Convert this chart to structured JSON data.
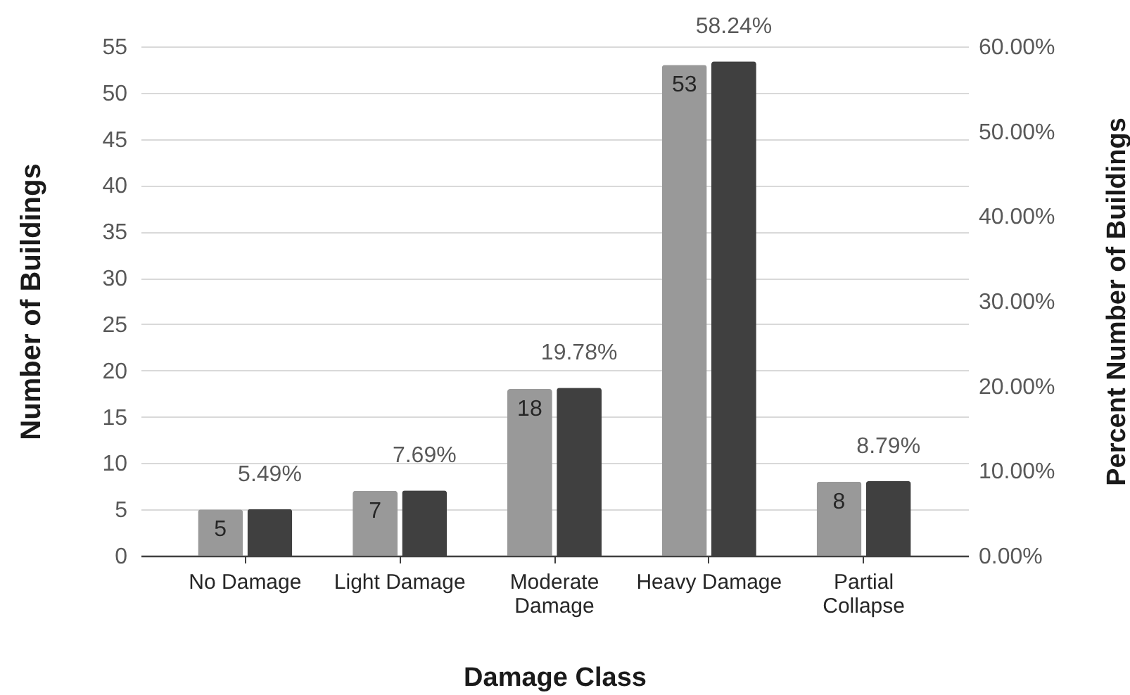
{
  "chart_data": {
    "type": "bar",
    "xlabel": "Damage Class",
    "ylabel": "Number of Buildings",
    "y2label": "Percent Number of Buildings",
    "categories": [
      "No Damage",
      "Light Damage",
      "Moderate Damage",
      "Heavy Damage",
      "Partial Collapse"
    ],
    "series": [
      {
        "color": "#999999",
        "values": [
          5,
          7,
          18,
          53,
          8
        ],
        "value_labels": [
          "5",
          "7",
          "18",
          "53",
          "8"
        ]
      },
      {
        "color": "#404040",
        "axis": "y2",
        "values": [
          5.49,
          7.69,
          19.78,
          58.24,
          8.79
        ],
        "value_labels": [
          "5.49%",
          "7.69%",
          "19.78%",
          "58.24%",
          "8.79%"
        ]
      }
    ],
    "ylim": [
      0,
      55
    ],
    "yticks": [
      0,
      5,
      10,
      15,
      20,
      25,
      30,
      35,
      40,
      45,
      50,
      55
    ],
    "y2lim": [
      0,
      60
    ],
    "y2ticks": [
      {
        "value": 0,
        "label": "0.00%"
      },
      {
        "value": 10,
        "label": "10.00%"
      },
      {
        "value": 20,
        "label": "20.00%"
      },
      {
        "value": 30,
        "label": "30.00%"
      },
      {
        "value": 40,
        "label": "40.00%"
      },
      {
        "value": 50,
        "label": "50.00%"
      },
      {
        "value": 60,
        "label": "60.00%"
      }
    ],
    "grid": "y"
  }
}
